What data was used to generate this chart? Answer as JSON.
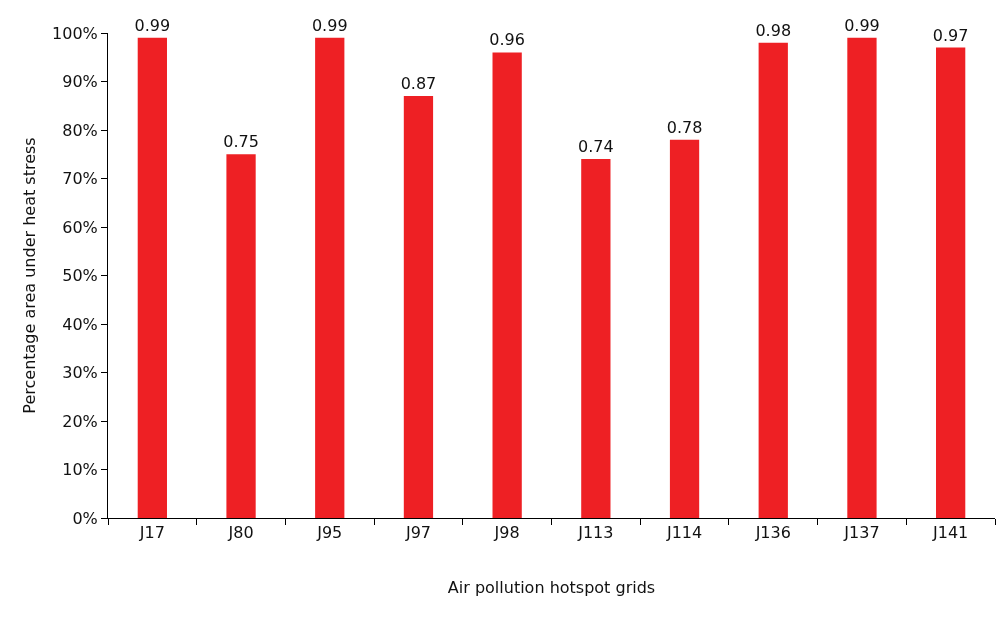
{
  "chart_data": {
    "type": "bar",
    "xlabel": "Air pollution hotspot grids",
    "ylabel": "Percentage area under heat stress",
    "categories": [
      "J17",
      "J80",
      "J95",
      "J97",
      "J98",
      "J113",
      "J114",
      "J136",
      "J137",
      "J141"
    ],
    "values": [
      0.99,
      0.75,
      0.99,
      0.87,
      0.96,
      0.74,
      0.78,
      0.98,
      0.99,
      0.97
    ],
    "color": "#ee2024",
    "data_labels": true,
    "ylim": [
      0,
      1
    ],
    "yticks": [
      {
        "value": 0,
        "label": "0%"
      },
      {
        "value": 0.1,
        "label": "10%"
      },
      {
        "value": 0.2,
        "label": "20%"
      },
      {
        "value": 0.3,
        "label": "30%"
      },
      {
        "value": 0.4,
        "label": "40%"
      },
      {
        "value": 0.5,
        "label": "50%"
      },
      {
        "value": 0.6,
        "label": "60%"
      },
      {
        "value": 0.7,
        "label": "70%"
      },
      {
        "value": 0.8,
        "label": "80%"
      },
      {
        "value": 0.9,
        "label": "90%"
      },
      {
        "value": 1,
        "label": "100%"
      }
    ]
  }
}
